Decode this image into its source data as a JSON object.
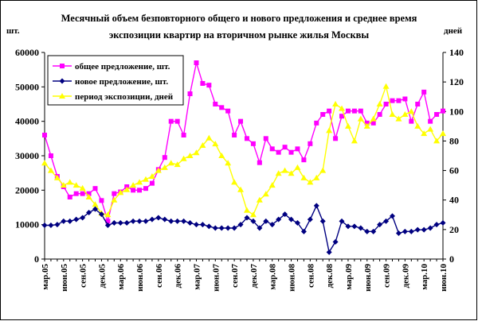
{
  "chart_data": {
    "type": "line",
    "title_lines": [
      "Месячный объем безповторного общего и нового предложения и среднее время",
      "экспозиции квартир на вторичном рынке жилья Москвы"
    ],
    "y_left_label": "шт.",
    "y_right_label": "дней",
    "y_left_lim": [
      0,
      60000
    ],
    "y_left_ticks": [
      "0",
      "10000",
      "20000",
      "30000",
      "40000",
      "50000",
      "60000"
    ],
    "y_right_lim": [
      0,
      140
    ],
    "y_right_ticks": [
      "0",
      "20",
      "40",
      "60",
      "80",
      "100",
      "120",
      "140"
    ],
    "grid": false,
    "legend_position": "top-left",
    "x_tick_labels": [
      "мар.05",
      "июн.05",
      "сен.05",
      "дек.05",
      "мар.06",
      "июн.06",
      "сен.06",
      "дек.06",
      "мар.07",
      "июн.07",
      "сен.07",
      "дек.07",
      "мар.08",
      "июн.08",
      "сен.08",
      "дек.08",
      "мар.09",
      "июн.09",
      "сен.09",
      "дек.09",
      "мар.10",
      "июн.10"
    ],
    "months": [
      "мар.05",
      "апр.05",
      "май.05",
      "июн.05",
      "июл.05",
      "авг.05",
      "сен.05",
      "окт.05",
      "ноя.05",
      "дек.05",
      "янв.06",
      "фев.06",
      "мар.06",
      "апр.06",
      "май.06",
      "июн.06",
      "июл.06",
      "авг.06",
      "сен.06",
      "окт.06",
      "ноя.06",
      "дек.06",
      "янв.07",
      "фев.07",
      "мар.07",
      "апр.07",
      "май.07",
      "июн.07",
      "июл.07",
      "авг.07",
      "сен.07",
      "окт.07",
      "ноя.07",
      "дек.07",
      "янв.08",
      "фев.08",
      "мар.08",
      "апр.08",
      "май.08",
      "июн.08",
      "июл.08",
      "авг.08",
      "сен.08",
      "окт.08",
      "ноя.08",
      "дек.08",
      "янв.09",
      "фев.09",
      "мар.09",
      "апр.09",
      "май.09",
      "июн.09",
      "июл.09",
      "авг.09",
      "сен.09",
      "окт.09",
      "ноя.09",
      "дек.09",
      "янв.10",
      "фев.10",
      "мар.10",
      "апр.10",
      "май.10",
      "июн.10"
    ],
    "series": [
      {
        "name": "общее предложение, шт.",
        "axis": "left",
        "color": "#ff00ff",
        "marker": "square",
        "values": [
          36000,
          30000,
          24000,
          21000,
          18000,
          19000,
          19000,
          19000,
          20500,
          17000,
          11000,
          19000,
          19500,
          21000,
          20000,
          20000,
          20500,
          22000,
          26000,
          29500,
          40000,
          40000,
          36000,
          48000,
          57000,
          51000,
          50500,
          45000,
          44000,
          43000,
          36000,
          40000,
          35000,
          33500,
          28000,
          35000,
          32000,
          31000,
          32500,
          31000,
          32000,
          28800,
          33500,
          39500,
          42000,
          43000,
          35000,
          41500,
          43000,
          43000,
          43000,
          39500,
          39500,
          42000,
          45000,
          46000,
          46000,
          46500,
          40000,
          45000,
          48500,
          40000,
          42000,
          43000
        ]
      },
      {
        "name": "новое предложение, шт.",
        "axis": "left",
        "color": "#000080",
        "marker": "diamond",
        "values": [
          9800,
          9800,
          10000,
          11000,
          11000,
          11500,
          12000,
          13500,
          14500,
          13000,
          9800,
          10500,
          10500,
          10500,
          11000,
          11000,
          11000,
          11500,
          12000,
          11500,
          11000,
          11000,
          11000,
          10500,
          10000,
          10000,
          9500,
          9000,
          9000,
          9000,
          9000,
          10000,
          12000,
          11000,
          9000,
          11000,
          10000,
          11500,
          13000,
          11500,
          10500,
          8000,
          11500,
          15500,
          11000,
          2000,
          5000,
          11000,
          9500,
          9500,
          9000,
          8000,
          8000,
          10000,
          11000,
          12500,
          7500,
          8000,
          8000,
          8500,
          8500,
          9000,
          10000,
          10500
        ]
      },
      {
        "name": "период экспозиции, дней",
        "axis": "right",
        "color": "#ffff00",
        "marker": "triangle",
        "values": [
          65,
          60,
          55,
          50,
          52,
          50,
          48,
          42,
          37,
          31,
          30,
          40,
          45,
          47,
          50,
          52,
          54,
          56,
          60,
          62,
          65,
          64,
          68,
          70,
          72,
          77,
          82,
          78,
          70,
          65,
          52,
          47,
          33,
          30,
          40,
          44,
          50,
          58,
          60,
          58,
          62,
          55,
          52,
          55,
          60,
          87,
          105,
          102,
          90,
          80,
          95,
          90,
          95,
          105,
          117,
          98,
          95,
          98,
          100,
          90,
          85,
          88,
          80,
          85
        ]
      }
    ]
  }
}
